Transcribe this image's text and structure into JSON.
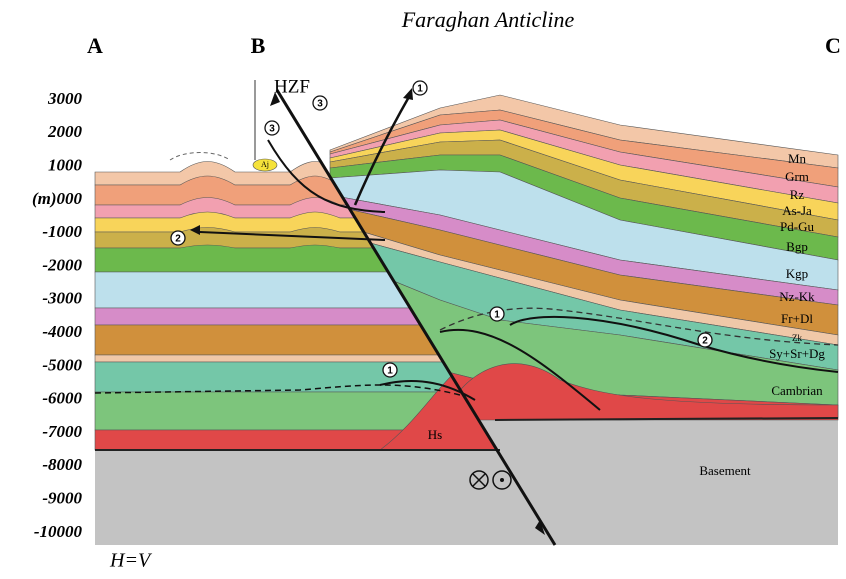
{
  "title": "Faraghan Anticline",
  "section_labels": [
    "A",
    "B",
    "C"
  ],
  "fault_label": "HZF",
  "depth_labels": [
    "3000",
    "2000",
    "1000",
    "(m)000",
    "-1000",
    "-2000",
    "-3000",
    "-4000",
    "-5000",
    "-6000",
    "-7000",
    "-8000",
    "-9000",
    "-10000"
  ],
  "layer_labels": [
    "Mn",
    "Grm",
    "Rz",
    "As-Ja",
    "Pd-Gu",
    "Bgp",
    "Kgp",
    "Nz-Kk",
    "Fr+Dl",
    "Zk",
    "Sy+Sr+Dg",
    "Cambrian"
  ],
  "other_labels": [
    "Hs",
    "Basement",
    "Aj"
  ],
  "markers": [
    "1",
    "3",
    "3",
    "2",
    "1",
    "2",
    "1"
  ],
  "scale_note": "H=V"
}
